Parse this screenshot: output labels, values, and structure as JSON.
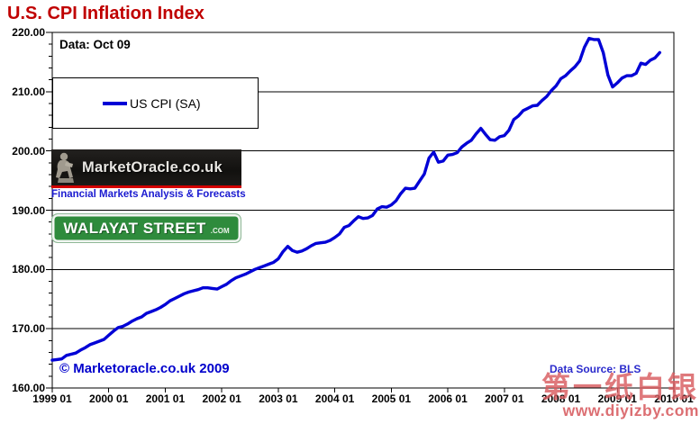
{
  "title": "U.S. CPI Inflation Index",
  "annotations": {
    "data_label": "Data: Oct 09",
    "copyright": "© Marketoracle.co.uk  2009",
    "data_source": "Data Source: BLS"
  },
  "legend": {
    "label": "US CPI (SA)"
  },
  "logos": {
    "market_oracle": {
      "name": "MarketOracle.co.uk",
      "tagline": "Financial Markets Analysis & Forecasts"
    },
    "walayat": {
      "name": "WALAYAT STREET",
      "suffix": ".COM"
    }
  },
  "watermark": {
    "cjk": "第一纸白银",
    "url": "www.diyizby.com"
  },
  "colors": {
    "title": "#c00000",
    "line": "#0000d6",
    "grid": "#000000",
    "axis": "#000000",
    "copyright": "#0000cc",
    "data_source": "#2b2bcc",
    "tagline": "#1a1ad0",
    "watermark": "#d85c60"
  },
  "chart_data": {
    "type": "line",
    "title": "U.S. CPI Inflation Index",
    "xlabel": "",
    "ylabel": "",
    "ylim": [
      160,
      220
    ],
    "x_months_span": 132,
    "x_start": "1999-01",
    "x_end_data": "2009-10",
    "grid": "horizontal",
    "legend_position": "top-left box",
    "y_ticks": [
      220,
      210,
      200,
      190,
      180,
      170,
      160
    ],
    "y_tick_labels": [
      "220.00",
      "210.00",
      "200.00",
      "190.00",
      "180.00",
      "170.00",
      "160.00"
    ],
    "y_gridlines": [
      210,
      200,
      190,
      180,
      170
    ],
    "y_minor_step": 2,
    "x_tick_labels": [
      "1999 01",
      "2000 01",
      "2001 01",
      "2002 01",
      "2003 01",
      "2004 01",
      "2005 01",
      "2006 01",
      "2007 01",
      "2008 01",
      "2009 01",
      "2010 01"
    ],
    "series": [
      {
        "name": "US CPI (SA)",
        "frequency": "monthly",
        "values": [
          164.7,
          164.8,
          164.9,
          165.5,
          165.7,
          165.9,
          166.4,
          166.8,
          167.3,
          167.6,
          167.9,
          168.2,
          168.9,
          169.6,
          170.2,
          170.4,
          170.8,
          171.3,
          171.7,
          172.0,
          172.6,
          172.9,
          173.2,
          173.6,
          174.1,
          174.7,
          175.1,
          175.5,
          175.9,
          176.2,
          176.4,
          176.6,
          176.9,
          176.9,
          176.8,
          176.7,
          177.1,
          177.5,
          178.1,
          178.6,
          178.9,
          179.2,
          179.6,
          180.0,
          180.3,
          180.6,
          180.9,
          181.2,
          181.8,
          183.0,
          183.9,
          183.2,
          182.9,
          183.1,
          183.5,
          184.0,
          184.4,
          184.5,
          184.6,
          184.9,
          185.4,
          186.0,
          187.1,
          187.4,
          188.2,
          188.9,
          188.6,
          188.7,
          189.1,
          190.2,
          190.6,
          190.5,
          190.9,
          191.6,
          192.8,
          193.7,
          193.6,
          193.7,
          194.9,
          196.1,
          198.8,
          199.8,
          198.1,
          198.3,
          199.3,
          199.4,
          199.7,
          200.7,
          201.3,
          201.8,
          202.9,
          203.8,
          202.8,
          201.9,
          201.8,
          202.4,
          202.6,
          203.5,
          205.3,
          205.9,
          206.8,
          207.2,
          207.6,
          207.7,
          208.5,
          209.2,
          210.2,
          211.0,
          212.2,
          212.7,
          213.5,
          214.2,
          215.2,
          217.5,
          219.0,
          218.8,
          218.8,
          216.6,
          212.8,
          210.8,
          211.5,
          212.3,
          212.7,
          212.7,
          213.1,
          214.8,
          214.6,
          215.3,
          215.7,
          216.6
        ]
      }
    ]
  }
}
